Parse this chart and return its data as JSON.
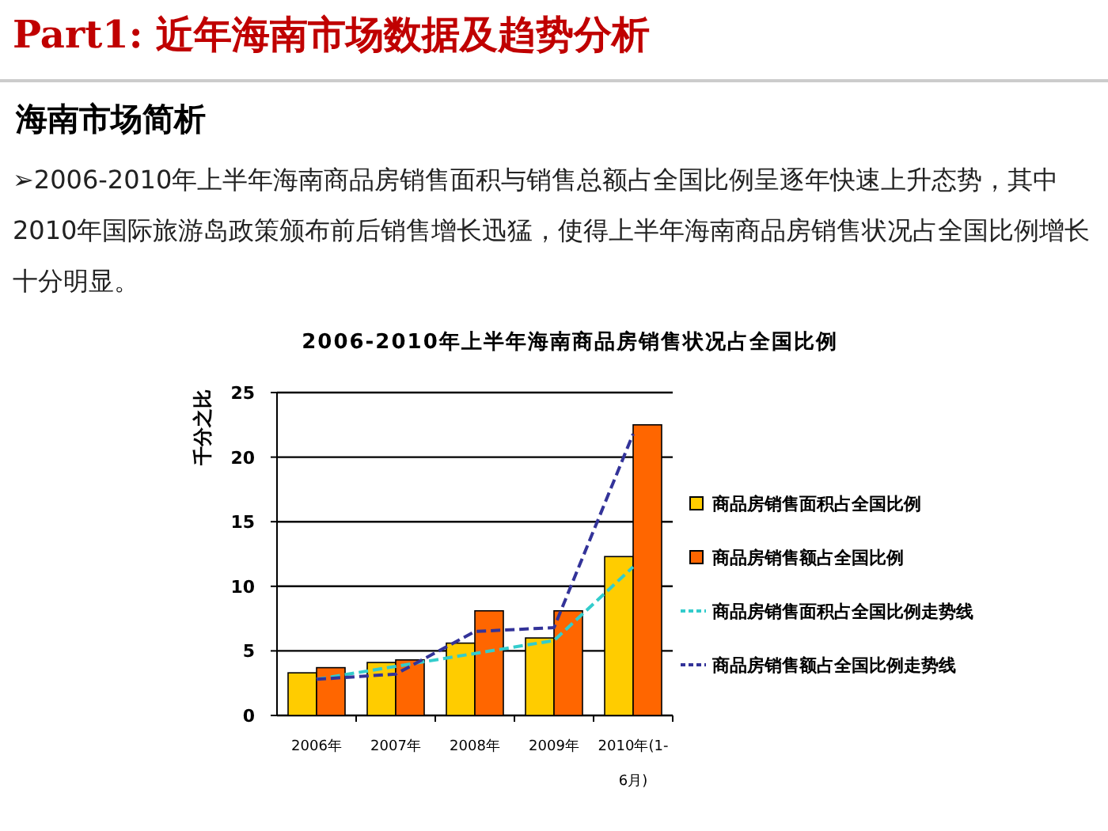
{
  "chart_data": {
    "type": "bar",
    "title": "2006-2010年上半年海南商品房销售状况占全国比例",
    "ylabel": "千分之比",
    "categories": [
      "2006年",
      "2007年",
      "2008年",
      "2009年",
      "2010年(1-6月)"
    ],
    "series": [
      {
        "name": "商品房销售面积占全国比例",
        "color": "#ffcc00",
        "values": [
          3.3,
          4.1,
          5.6,
          6.0,
          12.3
        ]
      },
      {
        "name": "商品房销售额占全国比例",
        "color": "#ff6600",
        "values": [
          3.7,
          4.3,
          8.1,
          8.1,
          22.5
        ]
      },
      {
        "name": "商品房销售面积占全国比例走势线",
        "type": "line",
        "line_style": "dashed",
        "color": "#33cccc",
        "values": [
          2.8,
          3.8,
          4.8,
          5.8,
          11.5
        ]
      },
      {
        "name": "商品房销售额占全国比例走势线",
        "type": "line",
        "line_style": "dashed",
        "color": "#333399",
        "values": [
          2.8,
          3.2,
          6.5,
          6.8,
          21.8
        ]
      }
    ],
    "ylim": [
      0,
      25
    ],
    "yticks": [
      0,
      5,
      10,
      15,
      20,
      25
    ],
    "grid": "y",
    "legend": "right",
    "annotations": [
      "Part1: 近年海南市场数据及趋势分析",
      "海南市场简析",
      "➢2006-2010年上半年海南商品房销售面积与销售总额占全国比例呈逐年快速上升态势，其中2010年国际旅游岛政策颁布前后销售增长迅猛，使得上半年海南商品房销售状况占全国比例增长十分明显。"
    ]
  }
}
